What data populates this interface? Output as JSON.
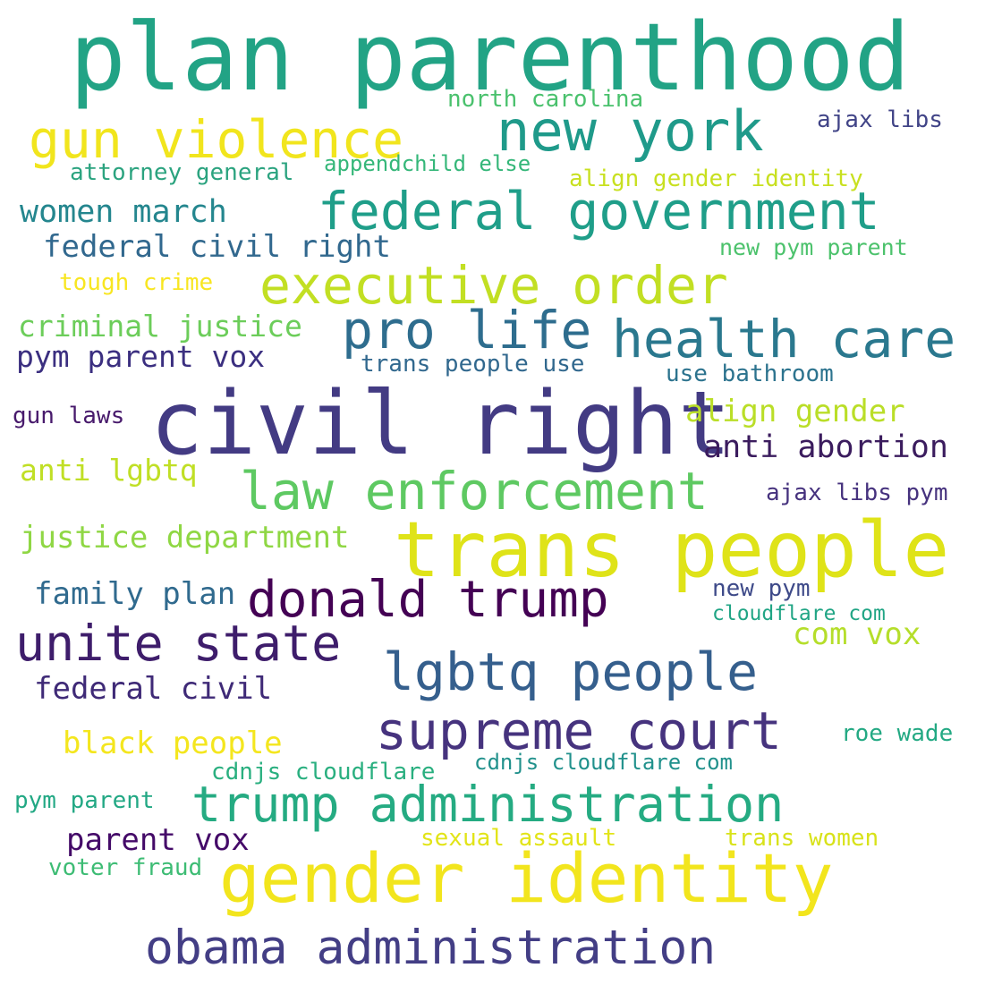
{
  "words": [
    {
      "text": "plan parenthood",
      "color": "#22a385"
    },
    {
      "text": "civil right",
      "color": "#433b83"
    },
    {
      "text": "trans people",
      "color": "#dfe318"
    },
    {
      "text": "gender identity",
      "color": "#f2e51d"
    },
    {
      "text": "federal government",
      "color": "#1f9e89"
    },
    {
      "text": "executive order",
      "color": "#c2df23"
    },
    {
      "text": "new york",
      "color": "#1f9a8a"
    },
    {
      "text": "gun violence",
      "color": "#f1e51d"
    },
    {
      "text": "health care",
      "color": "#2a788e"
    },
    {
      "text": "pro life",
      "color": "#2e6d8e"
    },
    {
      "text": "law enforcement",
      "color": "#5ec962"
    },
    {
      "text": "donald trump",
      "color": "#440154"
    },
    {
      "text": "unite state",
      "color": "#3e1d6b"
    },
    {
      "text": "lgbtq people",
      "color": "#355f8d"
    },
    {
      "text": "supreme court",
      "color": "#46337e"
    },
    {
      "text": "trump administration",
      "color": "#25ab82"
    },
    {
      "text": "obama administration",
      "color": "#433e85"
    },
    {
      "text": "women march",
      "color": "#24868e"
    },
    {
      "text": "federal civil right",
      "color": "#31688e"
    },
    {
      "text": "north carolina",
      "color": "#4ac16d"
    },
    {
      "text": "attorney general",
      "color": "#2ba37f"
    },
    {
      "text": "appendchild else",
      "color": "#35b779"
    },
    {
      "text": "align gender identity",
      "color": "#c8e020"
    },
    {
      "text": "ajax libs",
      "color": "#414487"
    },
    {
      "text": "new pym parent",
      "color": "#4cc26c"
    },
    {
      "text": "tough crime",
      "color": "#f8e621"
    },
    {
      "text": "criminal justice",
      "color": "#6ccd5a"
    },
    {
      "text": "pym parent vox",
      "color": "#3b2f80"
    },
    {
      "text": "trans people use",
      "color": "#31688e"
    },
    {
      "text": "use bathroom",
      "color": "#2c738e"
    },
    {
      "text": "gun laws",
      "color": "#481a6c"
    },
    {
      "text": "align gender",
      "color": "#bade28"
    },
    {
      "text": "anti abortion",
      "color": "#3b1c5e"
    },
    {
      "text": "anti lgbtq",
      "color": "#c0df25"
    },
    {
      "text": "ajax libs pym",
      "color": "#46327e"
    },
    {
      "text": "justice department",
      "color": "#8fd744"
    },
    {
      "text": "family plan",
      "color": "#306a8e"
    },
    {
      "text": "new pym",
      "color": "#3e4a89"
    },
    {
      "text": "cloudflare com",
      "color": "#21a585"
    },
    {
      "text": "com vox",
      "color": "#b5de2b"
    },
    {
      "text": "federal civil",
      "color": "#3f2a77"
    },
    {
      "text": "black people",
      "color": "#f4e61e"
    },
    {
      "text": "roe wade",
      "color": "#23a983"
    },
    {
      "text": "cdnjs cloudflare",
      "color": "#29af7f"
    },
    {
      "text": "cdnjs cloudflare com",
      "color": "#21918c"
    },
    {
      "text": "pym parent",
      "color": "#22a884"
    },
    {
      "text": "parent vox",
      "color": "#440a68"
    },
    {
      "text": "sexual assault",
      "color": "#e2e418"
    },
    {
      "text": "trans women",
      "color": "#d8e219"
    },
    {
      "text": "voter fraud",
      "color": "#3dbc74"
    }
  ]
}
